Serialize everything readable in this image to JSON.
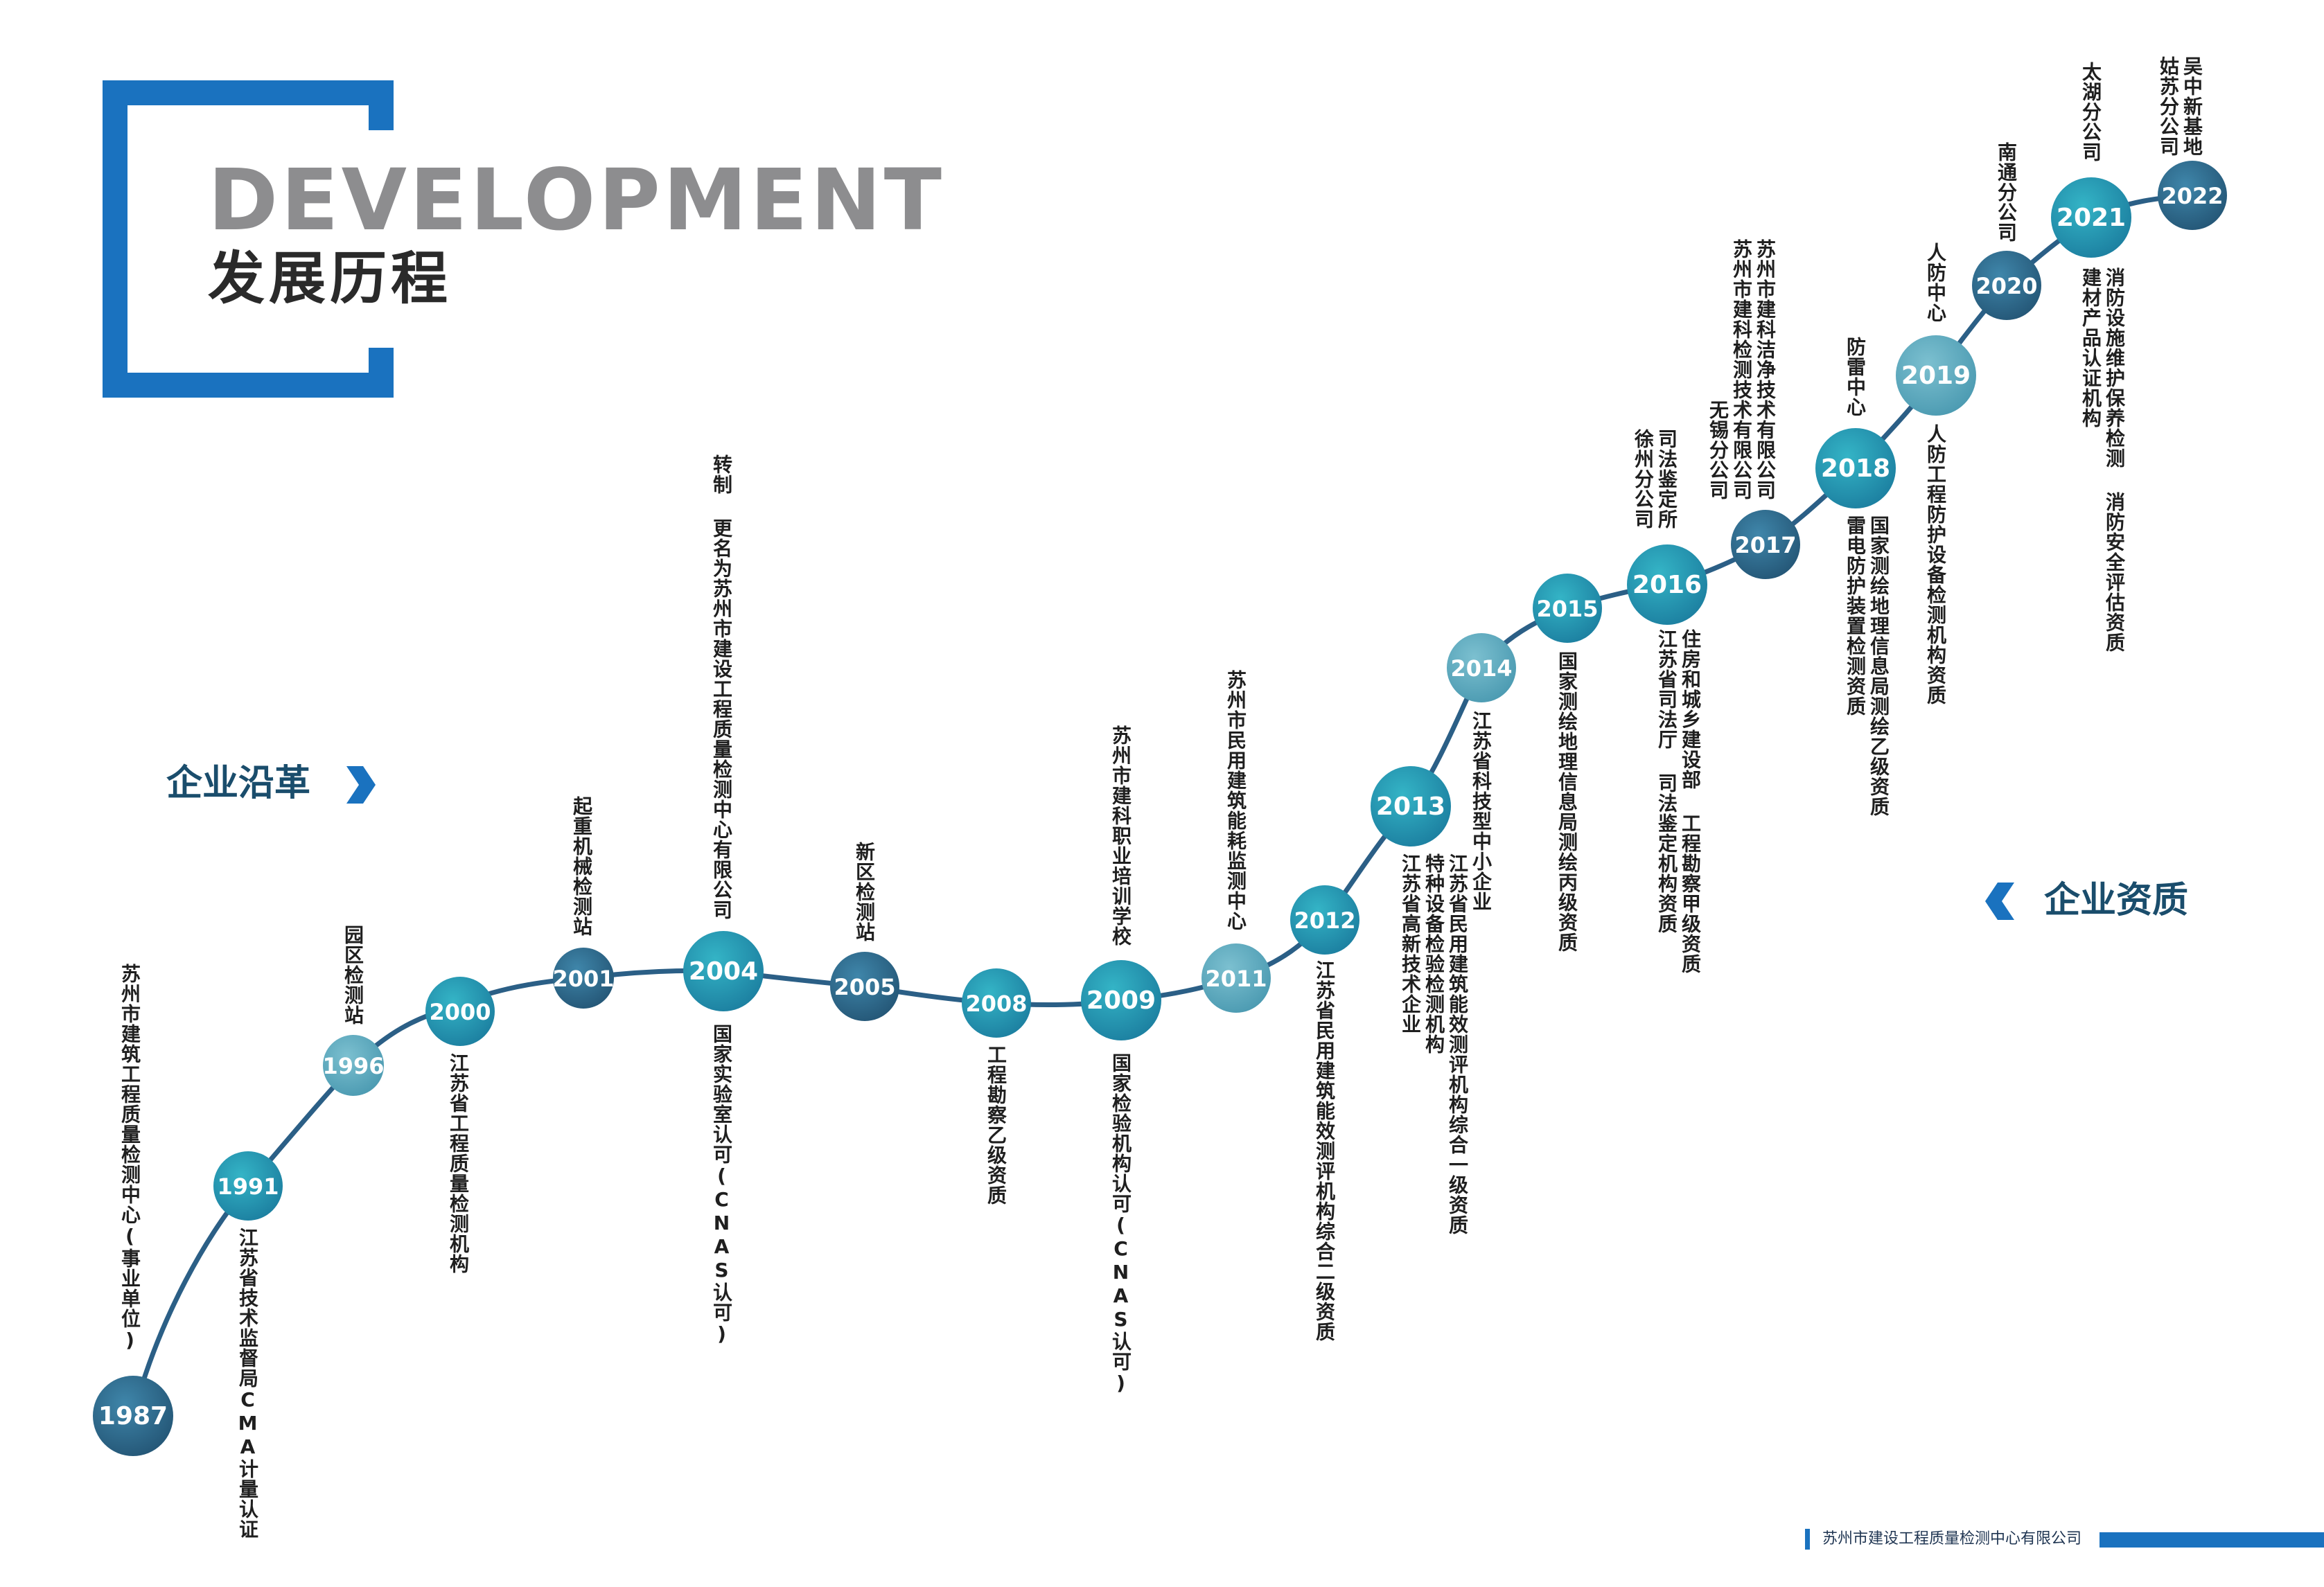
{
  "header": {
    "title_en": "DEVELOPMENT",
    "title_cn": "发展历程"
  },
  "left_label": "企业沿革",
  "right_label": "企业资质",
  "footer": "苏州市建设工程质量检测中心有限公司",
  "colors": {
    "accent_blue": "#1a72bf",
    "curve": "#2b5f86",
    "node_dark": "#2f6a8e",
    "node_teal": "#1e9bb2",
    "node_light": "#62aec2"
  },
  "timeline": [
    {
      "year": "1987",
      "above": [
        "苏州市建筑工程质量检测中心(事业单位)"
      ],
      "below": []
    },
    {
      "year": "1991",
      "above": [],
      "below": [
        "江苏省技术监督局CMA计量认证"
      ]
    },
    {
      "year": "1996",
      "above": [
        "园区检测站"
      ],
      "below": []
    },
    {
      "year": "2000",
      "above": [],
      "below": [
        "江苏省工程质量检测机构"
      ]
    },
    {
      "year": "2001",
      "above": [
        "起重机械检测站"
      ],
      "below": []
    },
    {
      "year": "2004",
      "above": [
        "转制 更名为苏州市建设工程质量检测中心有限公司"
      ],
      "below": [
        "国家实验室认可(CNAS认可)"
      ]
    },
    {
      "year": "2005",
      "above": [
        "新区检测站"
      ],
      "below": []
    },
    {
      "year": "2008",
      "above": [],
      "below": [
        "工程勘察乙级资质"
      ]
    },
    {
      "year": "2009",
      "above": [
        "苏州市建科职业培训学校"
      ],
      "below": [
        "国家检验机构认可(CNAS认可)"
      ]
    },
    {
      "year": "2011",
      "above": [
        "苏州市民用建筑能耗监测中心"
      ],
      "below": []
    },
    {
      "year": "2012",
      "above": [],
      "below": [
        "江苏省民用建筑能效测评机构综合二级资质"
      ]
    },
    {
      "year": "2013",
      "above": [],
      "below": [
        "江苏省民用建筑能效测评机构综合一级资质",
        "特种设备检验检测机构",
        "江苏省高新技术企业"
      ]
    },
    {
      "year": "2014",
      "above": [],
      "below": [
        "江苏省科技型中小企业"
      ]
    },
    {
      "year": "2015",
      "above": [],
      "below": [
        "国家测绘地理信息局测绘丙级资质"
      ]
    },
    {
      "year": "2016",
      "above": [
        "司法鉴定所",
        "徐州分公司"
      ],
      "below": [
        "住房和城乡建设部 工程勘察甲级资质",
        "江苏省司法厅 司法鉴定机构资质"
      ]
    },
    {
      "year": "2017",
      "above": [
        "苏州市建科洁净技术有限公司",
        "苏州市建科检测技术有限公司",
        "无锡分公司"
      ],
      "below": []
    },
    {
      "year": "2018",
      "above": [
        "防雷中心"
      ],
      "below": [
        "国家测绘地理信息局测绘乙级资质",
        "雷电防护装置检测资质"
      ]
    },
    {
      "year": "2019",
      "above": [
        "人防中心"
      ],
      "below": [
        "人防工程防护设备检测机构资质"
      ]
    },
    {
      "year": "2020",
      "above": [
        "南通分公司"
      ],
      "below": []
    },
    {
      "year": "2021",
      "above": [
        "太湖分公司"
      ],
      "below": [
        "消防设施维护保养检测 消防安全评估资质",
        "建材产品认证机构"
      ]
    },
    {
      "year": "2022",
      "above": [
        "吴中新基地",
        "姑苏分公司"
      ],
      "below": []
    }
  ]
}
